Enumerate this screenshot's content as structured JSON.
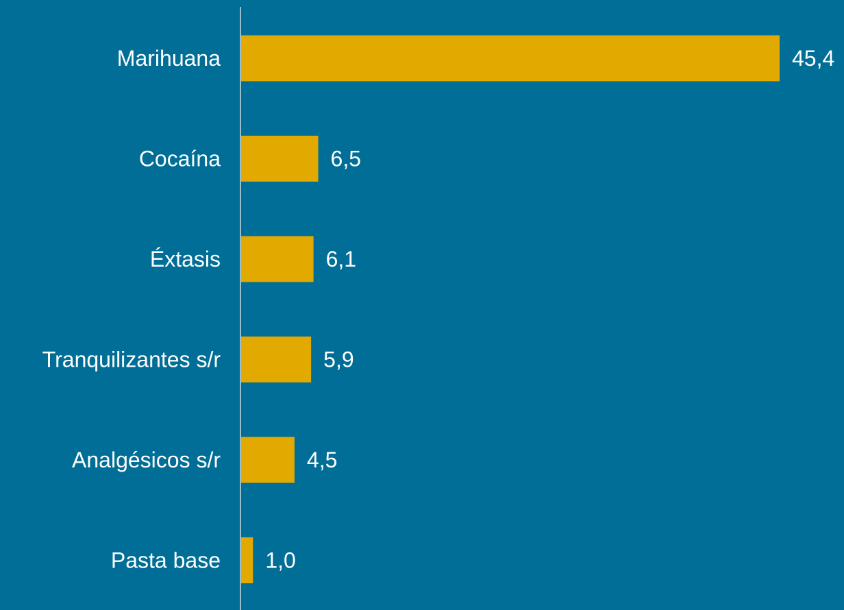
{
  "chart_data": {
    "type": "bar",
    "orientation": "horizontal",
    "categories": [
      "Marihuana",
      "Cocaína",
      "Éxtasis",
      "Tranquilizantes s/r",
      "Analgésicos s/r",
      "Pasta base"
    ],
    "values": [
      45.4,
      6.5,
      6.1,
      5.9,
      4.5,
      1.0
    ],
    "value_labels": [
      "45,4",
      "6,5",
      "6,1",
      "5,9",
      "4,5",
      "1,0"
    ],
    "xlim": [
      0,
      45.4
    ],
    "grid": false,
    "legend": "none",
    "bar_color": "#e2a900",
    "background_color": "#006e96",
    "axis_color": "#cfd8dc",
    "text_color": "#ffffff"
  }
}
